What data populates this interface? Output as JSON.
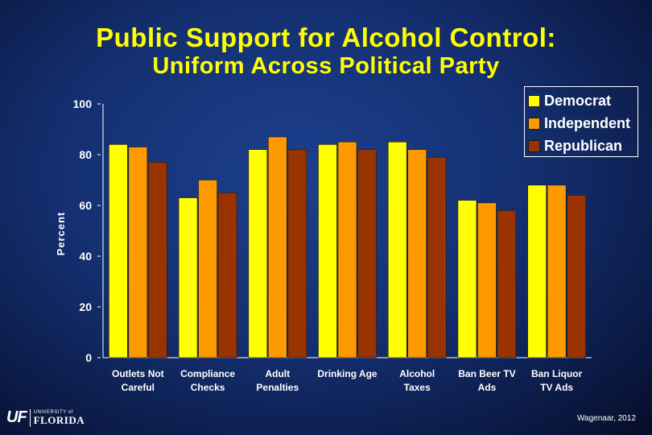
{
  "header": {
    "title": "Public Support for Alcohol Control:",
    "subtitle": "Uniform Across Political Party"
  },
  "chart_data": {
    "type": "bar",
    "ylabel": "Percent",
    "xlabel": "",
    "ylim": [
      0,
      100
    ],
    "yticks": [
      0,
      20,
      40,
      60,
      80,
      100
    ],
    "categories": [
      [
        "Outlets Not",
        "Careful"
      ],
      [
        "Compliance",
        "Checks"
      ],
      [
        "Adult",
        "Penalties"
      ],
      [
        "Drinking Age"
      ],
      [
        "Alcohol",
        "Taxes"
      ],
      [
        "Ban Beer TV",
        "Ads"
      ],
      [
        "Ban Liquor",
        "TV Ads"
      ]
    ],
    "series": [
      {
        "name": "Democrat",
        "color": "#ffff00",
        "values": [
          84,
          63,
          82,
          84,
          85,
          62,
          68
        ]
      },
      {
        "name": "Independent",
        "color": "#ff9900",
        "values": [
          83,
          70,
          87,
          85,
          82,
          61,
          68
        ]
      },
      {
        "name": "Republican",
        "color": "#993300",
        "values": [
          77,
          65,
          82,
          82,
          79,
          58,
          64
        ]
      }
    ],
    "legend_position": "top-right",
    "grid": false
  },
  "legend": {
    "items": [
      {
        "label": "Democrat",
        "color": "#ffff00"
      },
      {
        "label": "Independent",
        "color": "#ff9900"
      },
      {
        "label": "Republican",
        "color": "#993300"
      }
    ]
  },
  "footer": {
    "logo_mark": "UF",
    "logo_small": "UNIVERSITY of",
    "logo_big": "FLORIDA",
    "credit": "Wagenaar, 2012"
  }
}
